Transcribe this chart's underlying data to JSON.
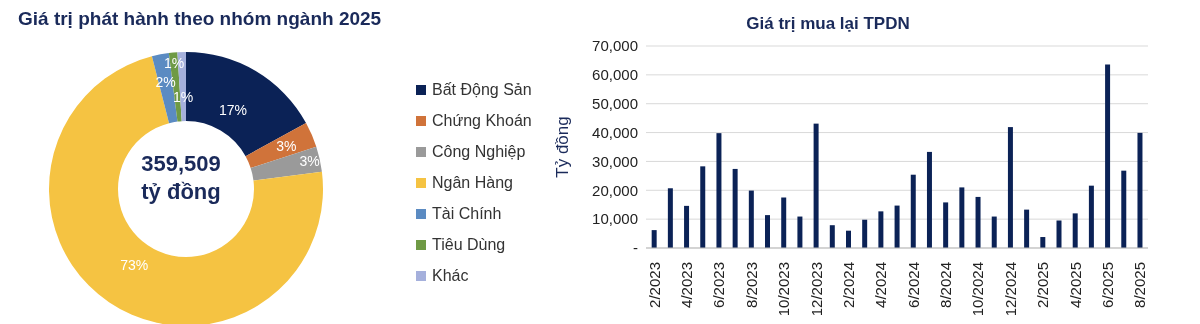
{
  "chart_data": [
    {
      "type": "donut",
      "title": "Giá trị phát hành theo nhóm ngành 2025",
      "categories": [
        "Bất Động Sản",
        "Chứng Khoán",
        "Công Nghiệp",
        "Ngân Hàng",
        "Tài Chính",
        "Tiêu Dùng",
        "Khác"
      ],
      "values": [
        17,
        3,
        3,
        73,
        2,
        1,
        1
      ],
      "colors": [
        "#0b2256",
        "#d0733a",
        "#9a9a9a",
        "#f5c342",
        "#5b8bc2",
        "#6f9a45",
        "#a5b0dc"
      ],
      "value_labels": [
        "17%",
        "3%",
        "3%",
        "73%",
        "2%",
        "1%",
        "1%"
      ],
      "legend": "right",
      "annotations": [
        "359,509",
        "tỷ đồng"
      ]
    },
    {
      "type": "bar",
      "title": "Giá trị mua lại TPDN",
      "ylabel": "Tỷ đồng",
      "categories": [
        "2/2023",
        null,
        "4/2023",
        null,
        "6/2023",
        null,
        "8/2023",
        null,
        "10/2023",
        null,
        "12/2023",
        null,
        "2/2024",
        null,
        "4/2024",
        null,
        "6/2024",
        null,
        "8/2024",
        null,
        "10/2024",
        null,
        "12/2024",
        null,
        "2/2025",
        null,
        "4/2025",
        null,
        "6/2025",
        null,
        "8/2025"
      ],
      "series": [
        {
          "color": "#0b2256",
          "values": [
            6200,
            20700,
            14600,
            28300,
            39800,
            27400,
            19900,
            11400,
            17500,
            10900,
            43100,
            7900,
            6000,
            9800,
            12700,
            14700,
            25400,
            33300,
            15800,
            21000,
            17700,
            10900,
            41900,
            13300,
            3800,
            9500,
            12000,
            21600,
            63600,
            26800,
            39900
          ]
        }
      ],
      "ylim": [
        0,
        70000
      ],
      "yticks": [
        {
          "value": 0,
          "label": "-"
        },
        {
          "value": 10000,
          "label": "10,000"
        },
        {
          "value": 20000,
          "label": "20,000"
        },
        {
          "value": 30000,
          "label": "30,000"
        },
        {
          "value": 40000,
          "label": "40,000"
        },
        {
          "value": 50000,
          "label": "50,000"
        },
        {
          "value": 60000,
          "label": "60,000"
        },
        {
          "value": 70000,
          "label": "70,000"
        }
      ],
      "grid": "y"
    }
  ]
}
